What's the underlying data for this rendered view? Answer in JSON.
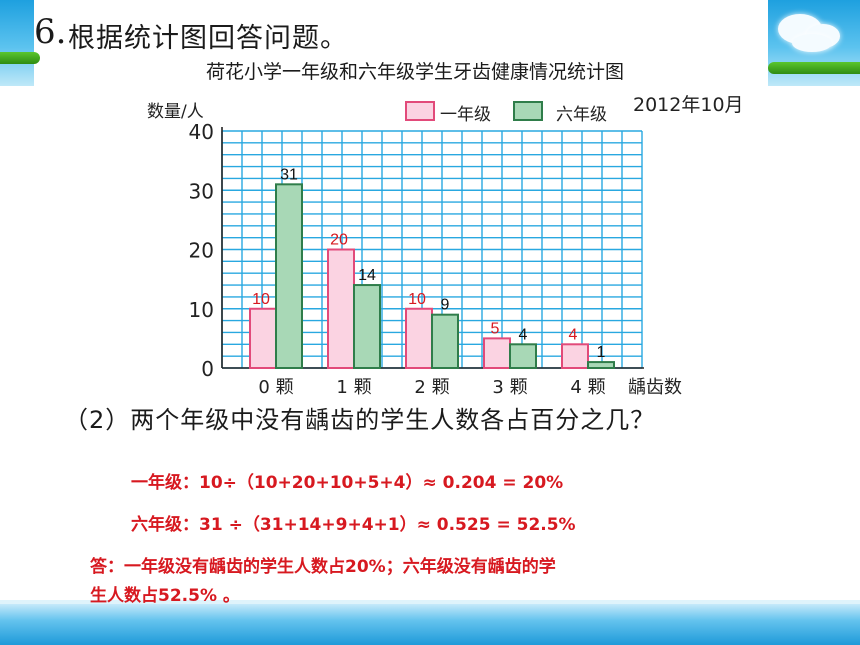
{
  "question": {
    "number": "6.",
    "title": "根据统计图回答问题。",
    "sub_question": "（2）两个年级中没有龋齿的学生人数各占百分之几？"
  },
  "answers": {
    "grade1": "一年级：10÷（10+20+10+5+4）≈ 0.204 = 20%",
    "grade6": "六年级：31 ÷（31+14+9+4+1）≈ 0.525 = 52.5%",
    "conclusion_line1": "答：一年级没有龋齿的学生人数占20%；六年级没有龋齿的学",
    "conclusion_line2": "生人数占52.5% 。"
  },
  "colors": {
    "grade1_fill": "#fbd3e2",
    "grade1_stroke": "#e24a7a",
    "grade6_fill": "#a8d8b6",
    "grade6_stroke": "#2f7d4a",
    "grid": "#29a8e0",
    "label_red": "#d71920"
  },
  "chart_data": {
    "type": "bar",
    "title": "荷花小学一年级和六年级学生牙齿健康情况统计图",
    "date": "2012年10月",
    "ylabel": "数量/人",
    "xlabel": "龋齿数",
    "ylim": [
      0,
      40
    ],
    "yticks": [
      0,
      10,
      20,
      30,
      40
    ],
    "grid": true,
    "categories": [
      "0 颗",
      "1 颗",
      "2 颗",
      "3 颗",
      "4 颗"
    ],
    "series": [
      {
        "name": "一年级",
        "values": [
          10,
          20,
          10,
          5,
          4
        ]
      },
      {
        "name": "六年级",
        "values": [
          31,
          14,
          9,
          4,
          1
        ]
      }
    ],
    "legend_position": "top"
  }
}
